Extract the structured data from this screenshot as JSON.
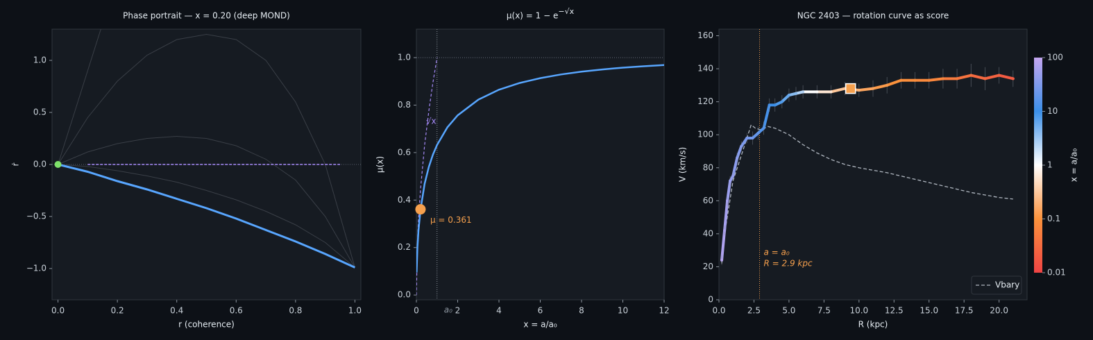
{
  "chart_data": [
    {
      "type": "line",
      "title": "Phase portrait — x = 0.20 (deep MOND)",
      "xlabel": "r (coherence)",
      "ylabel": "ṙ",
      "xlim": [
        -0.02,
        1.02
      ],
      "ylim": [
        -1.3,
        1.3
      ],
      "xticks": [
        {
          "value": 0,
          "label": "0.0"
        },
        {
          "value": 0.2,
          "label": "0.2"
        },
        {
          "value": 0.4,
          "label": "0.4"
        },
        {
          "value": 0.6,
          "label": "0.6"
        },
        {
          "value": 0.8,
          "label": "0.8"
        },
        {
          "value": 1,
          "label": "1.0"
        }
      ],
      "yticks": [
        {
          "value": -1,
          "label": "−1.0"
        },
        {
          "value": -0.5,
          "label": "−0.5"
        },
        {
          "value": 0,
          "label": "0.0"
        },
        {
          "value": 0.5,
          "label": "0.5"
        },
        {
          "value": 1,
          "label": "1.0"
        }
      ],
      "hlines": [
        {
          "value": 0,
          "color": "#6e7681"
        }
      ],
      "series": [
        {
          "x": [
            0,
            0.1,
            0.2,
            0.3,
            0.4,
            0.5,
            0.6,
            0.7,
            0.8,
            0.9,
            1
          ],
          "values": [
            0,
            0.45,
            0.8,
            1.05,
            1.2,
            1.25,
            1.2,
            1.0,
            0.6,
            0,
            -0.99
          ],
          "color": "#3a3f47",
          "width": 1
        },
        {
          "x": [
            0,
            0.05,
            0.1,
            0.15,
            0.2
          ],
          "values": [
            0,
            0.45,
            0.9,
            1.35,
            1.8
          ],
          "color": "#3a3f47",
          "width": 1
        },
        {
          "x": [
            0,
            0.1,
            0.2,
            0.3,
            0.4,
            0.5,
            0.6,
            0.7,
            0.8,
            0.9,
            1
          ],
          "values": [
            0,
            0.12,
            0.2,
            0.25,
            0.27,
            0.25,
            0.18,
            0.05,
            -0.15,
            -0.5,
            -0.99
          ],
          "color": "#3a3f47",
          "width": 1
        },
        {
          "x": [
            0,
            0.1,
            0.2,
            0.3,
            0.4,
            0.5,
            0.6,
            0.7,
            0.8,
            0.9,
            1
          ],
          "values": [
            0,
            -0.02,
            -0.06,
            -0.11,
            -0.17,
            -0.25,
            -0.34,
            -0.45,
            -0.58,
            -0.75,
            -0.99
          ],
          "color": "#3a3f47",
          "width": 1
        },
        {
          "x": [
            0.1,
            0.95
          ],
          "values": [
            0,
            0
          ],
          "color": "#a78bfa",
          "width": 1.5,
          "dash": "4 2"
        },
        {
          "x": [
            0,
            0.1,
            0.2,
            0.3,
            0.4,
            0.5,
            0.6,
            0.7,
            0.8,
            0.9,
            1
          ],
          "values": [
            0,
            -0.07,
            -0.16,
            -0.24,
            -0.33,
            -0.42,
            -0.52,
            -0.63,
            -0.74,
            -0.86,
            -0.99
          ],
          "color": "#58a6ff",
          "width": 3
        }
      ],
      "markers": [
        {
          "x": 0,
          "y": 0,
          "color": "#7ee06a",
          "shape": "circle"
        }
      ]
    },
    {
      "type": "line",
      "title": "μ(x) = 1 − e",
      "title_sup": "−√x",
      "xlabel": "x = a/a₀",
      "ylabel": "μ(x)",
      "xlim": [
        0,
        12
      ],
      "ylim": [
        -0.02,
        1.12
      ],
      "xticks": [
        0,
        2,
        4,
        6,
        8,
        10,
        12
      ],
      "yticks": [
        {
          "value": 0,
          "label": "0.0"
        },
        {
          "value": 0.2,
          "label": "0.2"
        },
        {
          "value": 0.4,
          "label": "0.4"
        },
        {
          "value": 0.6,
          "label": "0.6"
        },
        {
          "value": 0.8,
          "label": "0.8"
        },
        {
          "value": 1,
          "label": "1.0"
        }
      ],
      "hlines": [
        {
          "value": 1,
          "color": "#6e7681"
        }
      ],
      "vlines": [
        {
          "value": 1,
          "color": "#8b949e",
          "labels": [
            "a₀"
          ]
        }
      ],
      "series": [
        {
          "x": [
            0,
            0.05,
            0.1,
            0.2,
            0.4,
            0.6,
            0.8,
            1
          ],
          "values": [
            0,
            0.2236,
            0.3162,
            0.4472,
            0.6325,
            0.7746,
            0.8944,
            1
          ],
          "color": "#a78bfa",
          "width": 1.2,
          "dash": "4 3",
          "label": "√x"
        },
        {
          "x": [
            0.01,
            0.05,
            0.1,
            0.2,
            0.4,
            0.6,
            0.8,
            1,
            1.5,
            2,
            3,
            4,
            5,
            6,
            7,
            8,
            9,
            10,
            11,
            12
          ],
          "values": [
            0.095,
            0.2003,
            0.2711,
            0.3606,
            0.4687,
            0.5391,
            0.5912,
            0.6321,
            0.7062,
            0.7569,
            0.8231,
            0.8647,
            0.8931,
            0.9137,
            0.929,
            0.9409,
            0.9502,
            0.9577,
            0.9637,
            0.9687
          ],
          "color": "#58a6ff",
          "width": 2.5
        }
      ],
      "markers": [
        {
          "x": 0.2,
          "y": 0.361,
          "color": "#f6a04d",
          "shape": "circle",
          "label": "μ = 0.361"
        }
      ]
    },
    {
      "type": "line",
      "title": "NGC 2403 — rotation curve as score",
      "xlabel": "R (kpc)",
      "ylabel": "V (km/s)",
      "xlim": [
        0,
        22
      ],
      "ylim": [
        0,
        164
      ],
      "xticks": [
        {
          "value": 0,
          "label": "0.0"
        },
        {
          "value": 2.5,
          "label": "2.5"
        },
        {
          "value": 5,
          "label": "5.0"
        },
        {
          "value": 7.5,
          "label": "7.5"
        },
        {
          "value": 10,
          "label": "10.0"
        },
        {
          "value": 12.5,
          "label": "12.5"
        },
        {
          "value": 15,
          "label": "15.0"
        },
        {
          "value": 17.5,
          "label": "17.5"
        },
        {
          "value": 20,
          "label": "20.0"
        }
      ],
      "yticks": [
        0,
        20,
        40,
        60,
        80,
        100,
        120,
        140,
        160
      ],
      "vlines": [
        {
          "value": 2.9,
          "color": "#f6a04d",
          "labels": [
            "a = a₀",
            "R = 2.9 kpc"
          ]
        }
      ],
      "series": [
        {
          "name": "Vbary",
          "x": [
            0.2,
            0.5,
            1,
            1.5,
            2,
            2.3,
            2.6,
            3,
            3.5,
            4,
            5,
            6,
            7,
            8,
            9,
            10,
            12,
            14,
            16,
            18,
            20,
            21
          ],
          "values": [
            22,
            45,
            72,
            85,
            98,
            106,
            104,
            103,
            105,
            104,
            100,
            94,
            89,
            85,
            82,
            80,
            77,
            73,
            69,
            65,
            62,
            61
          ],
          "color": "#b0b7c0",
          "width": 1.3,
          "dash": "5 3"
        },
        {
          "x": [
            0.2,
            0.4,
            0.6,
            0.8,
            1,
            1.3,
            1.6,
            2,
            2.4,
            2.8,
            3.2,
            3.6,
            4,
            4.5,
            5,
            5.5,
            6,
            7,
            8,
            9,
            10,
            11,
            12,
            13,
            14,
            15,
            16,
            17,
            18,
            19,
            20,
            21
          ],
          "values": [
            24,
            42,
            60,
            72,
            75,
            86,
            93,
            98,
            98,
            101,
            104,
            118,
            118,
            120,
            124,
            125,
            126,
            126,
            126,
            128,
            127,
            128,
            130,
            133,
            133,
            133,
            134,
            134,
            136,
            134,
            136,
            134
          ],
          "errors": [
            3,
            3,
            3,
            3,
            3,
            3,
            3,
            3,
            4,
            4,
            4,
            4,
            4,
            4,
            4,
            4,
            4,
            4,
            4,
            4,
            4,
            5,
            5,
            5,
            5,
            5,
            6,
            6,
            7,
            7,
            5,
            5
          ],
          "accel": [
            80,
            70,
            60,
            50,
            45,
            40,
            35,
            30,
            25,
            20,
            15,
            12,
            10,
            8,
            6,
            4,
            2.5,
            1,
            0.6,
            0.3,
            0.2,
            0.15,
            0.12,
            0.1,
            0.09,
            0.08,
            0.07,
            0.05,
            0.04,
            0.03,
            0.025,
            0.02
          ],
          "colored": true,
          "width": 4
        }
      ],
      "markers": [
        {
          "x": 9.4,
          "y": 128,
          "color": "#f6a04d",
          "shape": "square"
        }
      ],
      "legend": "lower right",
      "colorbar": {
        "label": "x = a/a₀",
        "lim": [
          0.01,
          100
        ],
        "ticks": [
          0.01,
          0.1,
          1,
          10,
          100
        ],
        "log": true,
        "colors": [
          "#ef4444",
          "#fb923c",
          "#ffffff",
          "#3b8fe8",
          "#c4a6f0"
        ]
      }
    }
  ]
}
